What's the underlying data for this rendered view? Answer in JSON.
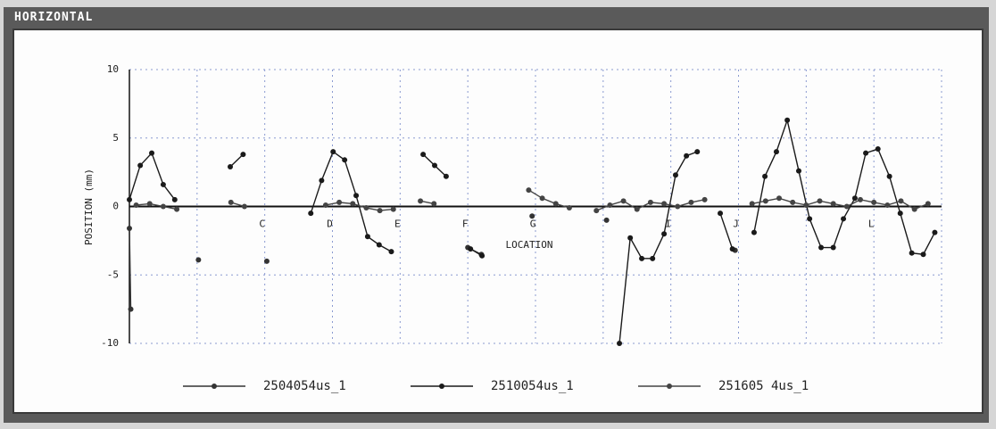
{
  "window": {
    "title": "HORIZONTAL"
  },
  "chart_data": {
    "type": "line",
    "xlabel": "LOCATION",
    "ylabel": "POSITION (mm)",
    "xlim": [
      0,
      12
    ],
    "ylim": [
      -10,
      10
    ],
    "xticks": [
      {
        "value": 0,
        "label": null
      },
      {
        "value": 1,
        "label": null
      },
      {
        "value": 2,
        "label": "C"
      },
      {
        "value": 3,
        "label": "D"
      },
      {
        "value": 4,
        "label": "E"
      },
      {
        "value": 5,
        "label": "F"
      },
      {
        "value": 6,
        "label": "G"
      },
      {
        "value": 7,
        "label": null
      },
      {
        "value": 8,
        "label": "I"
      },
      {
        "value": 9,
        "label": "J"
      },
      {
        "value": 10,
        "label": null
      },
      {
        "value": 11,
        "label": "L"
      },
      {
        "value": 12,
        "label": null
      }
    ],
    "yticks": [
      -10,
      -5,
      0,
      5,
      10
    ],
    "grid": true,
    "series": [
      {
        "name": "2504054us_1",
        "color": "#333333",
        "x": [
          0.0,
          0.02,
          null,
          1.02,
          null,
          2.03,
          null,
          5.0,
          5.2,
          null,
          5.95,
          null,
          7.05,
          null,
          8.95
        ],
        "values": [
          -1.6,
          -7.5,
          null,
          -3.9,
          null,
          -4.0,
          null,
          -3.0,
          -3.5,
          null,
          -0.7,
          null,
          -1.0,
          null,
          -3.2
        ]
      },
      {
        "name": "2510054us_1",
        "color": "#1a1a1a",
        "x": [
          0.0,
          0.16,
          0.33,
          0.5,
          0.67,
          null,
          1.49,
          1.68,
          null,
          2.68,
          2.84,
          3.01,
          3.18,
          3.35,
          3.52,
          3.69,
          3.87,
          null,
          4.34,
          4.51,
          4.68,
          null,
          5.04,
          5.21,
          null,
          7.24,
          7.4,
          7.57,
          7.73,
          7.9,
          8.07,
          8.23,
          8.39,
          null,
          8.73,
          8.91,
          null,
          9.23,
          9.39,
          9.56,
          9.72,
          9.89,
          10.05,
          10.22,
          10.4,
          10.55,
          10.72,
          10.88,
          11.06,
          11.23,
          11.39,
          11.56,
          11.73,
          11.9
        ],
        "values": [
          0.5,
          3.0,
          3.9,
          1.6,
          0.5,
          null,
          2.9,
          3.8,
          null,
          -0.5,
          1.9,
          4.0,
          3.4,
          0.8,
          -2.2,
          -2.8,
          -3.3,
          null,
          3.8,
          3.0,
          2.2,
          null,
          -3.1,
          -3.6,
          null,
          -10,
          -2.3,
          -3.8,
          -3.8,
          -2.0,
          2.3,
          3.7,
          4.0,
          null,
          -0.5,
          -3.1,
          null,
          -1.9,
          2.2,
          4.0,
          6.3,
          2.6,
          -0.9,
          -3.0,
          -3.0,
          -0.9,
          0.6,
          3.9,
          4.2,
          2.2,
          -0.5,
          -3.4,
          -3.5,
          -1.9
        ]
      },
      {
        "name": "251605 4us_1",
        "color": "#444444",
        "x": [
          0.1,
          0.3,
          0.5,
          0.7,
          null,
          1.5,
          1.7,
          null,
          2.9,
          3.1,
          3.3,
          3.5,
          3.7,
          3.9,
          null,
          4.3,
          4.5,
          null,
          5.9,
          6.1,
          6.3,
          6.5,
          null,
          6.9,
          7.1,
          7.3,
          7.5,
          7.7,
          7.9,
          8.1,
          8.3,
          8.5,
          null,
          9.2,
          9.4,
          9.6,
          9.8,
          10.0,
          10.2,
          10.4,
          10.6,
          10.8,
          11.0,
          11.2,
          11.4,
          11.6,
          11.8
        ],
        "values": [
          0.1,
          0.2,
          0.0,
          -0.2,
          null,
          0.3,
          0.0,
          null,
          0.1,
          0.3,
          0.2,
          -0.1,
          -0.3,
          -0.2,
          null,
          0.4,
          0.2,
          null,
          1.2,
          0.6,
          0.2,
          -0.1,
          null,
          -0.3,
          0.1,
          0.4,
          -0.2,
          0.3,
          0.2,
          0.0,
          0.3,
          0.5,
          null,
          0.2,
          0.4,
          0.6,
          0.3,
          0.1,
          0.4,
          0.2,
          0.0,
          0.5,
          0.3,
          0.1,
          0.4,
          -0.2,
          0.2
        ]
      }
    ]
  }
}
